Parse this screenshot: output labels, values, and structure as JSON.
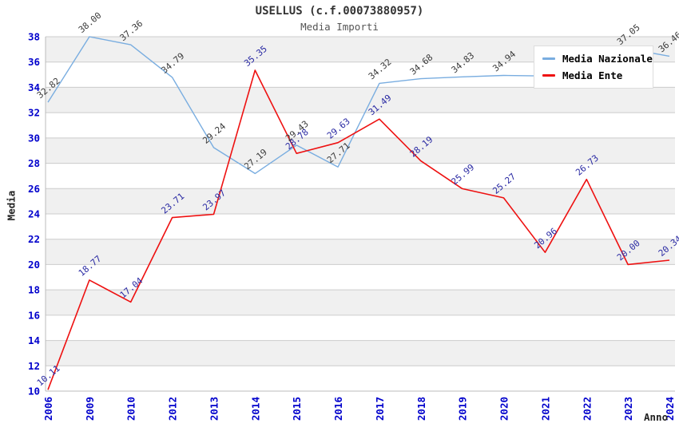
{
  "title": "USELLUS (c.f.00073880957)",
  "subtitle": "Media Importi",
  "y_axis_title": "Media",
  "x_axis_title": "Anno",
  "legend": {
    "items": [
      {
        "label": "Media Nazionale",
        "color": "#79ade0"
      },
      {
        "label": "Media Ente",
        "color": "#ee1111"
      }
    ]
  },
  "colors": {
    "tick_label": "#0000cc",
    "gridline": "#cccccc",
    "band_gray": "#f0f0f0",
    "axis_line": "#bbbbbb",
    "title": "#333333",
    "subtitle": "#555555"
  },
  "chart_data": {
    "type": "line",
    "title": "USELLUS (c.f.00073880957)",
    "subtitle": "Media Importi",
    "xlabel": "Anno",
    "ylabel": "Media",
    "ylim": [
      10,
      38
    ],
    "y_tick_step": 2,
    "y_ticks": [
      10,
      12,
      14,
      16,
      18,
      20,
      22,
      24,
      26,
      28,
      30,
      32,
      34,
      36,
      38
    ],
    "grid": true,
    "banded_background": true,
    "legend_position": "top-right",
    "categories": [
      "2006",
      "2009",
      "2010",
      "2012",
      "2013",
      "2014",
      "2015",
      "2016",
      "2017",
      "2018",
      "2019",
      "2020",
      "2021",
      "2022",
      "2023",
      "2024"
    ],
    "series": [
      {
        "name": "Media Nazionale",
        "color": "#79ade0",
        "label_color": "#3a3a3a",
        "values": [
          32.82,
          38.0,
          37.36,
          34.79,
          29.24,
          27.19,
          29.43,
          27.71,
          34.32,
          34.68,
          34.83,
          34.94,
          34.9,
          35.9,
          37.05,
          36.46
        ],
        "labels": [
          "32.82",
          "38.00",
          "37.36",
          "34.79",
          "29.24",
          "27.19",
          "29.43",
          "27.71",
          "34.32",
          "34.68",
          "34.83",
          "34.94",
          null,
          null,
          "37.05",
          "36.46"
        ]
      },
      {
        "name": "Media Ente",
        "color": "#ee1111",
        "label_color": "#2929a3",
        "values": [
          10.11,
          18.77,
          17.04,
          23.71,
          23.97,
          35.35,
          28.78,
          29.63,
          31.49,
          28.19,
          25.99,
          25.27,
          20.96,
          26.73,
          20.0,
          20.34
        ],
        "labels": [
          "10.11",
          "18.77",
          "17.04",
          "23.71",
          "23.97",
          "35.35",
          "28.78",
          "29.63",
          "31.49",
          "28.19",
          "25.99",
          "25.27",
          "20.96",
          "26.73",
          "20.00",
          "20.34"
        ]
      }
    ]
  }
}
